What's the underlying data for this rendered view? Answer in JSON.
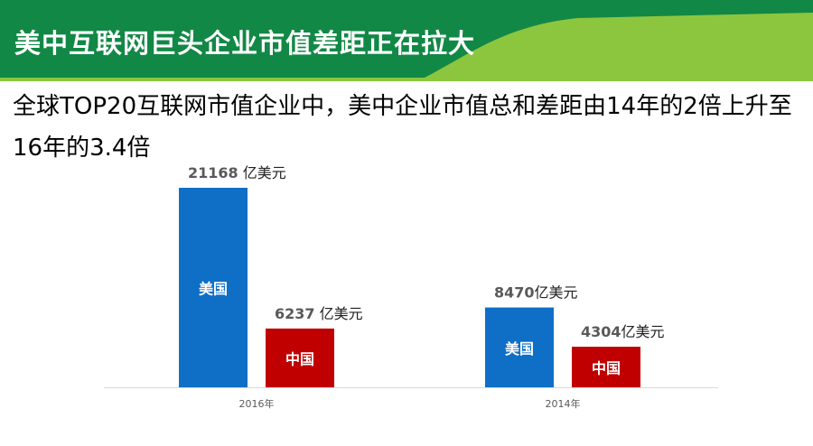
{
  "header": {
    "title": "美中互联网巨头企业市值差距正在拉大",
    "colors": {
      "dark_green": "#128846",
      "light_green": "#8cc63f"
    }
  },
  "subtitle": "全球TOP20互联网市值企业中，美中企业市值总和差距由14年的2倍上升至16年的3.4倍",
  "chart_data": {
    "type": "bar",
    "title": "",
    "categories": [
      "2016年",
      "2014年"
    ],
    "series": [
      {
        "name": "美国",
        "values": [
          21168,
          8470
        ],
        "color": "#0f6fc6"
      },
      {
        "name": "中国",
        "values": [
          6237,
          4304
        ],
        "color": "#c00000"
      }
    ],
    "data_labels": [
      [
        "21168 亿美元",
        "8470亿美元"
      ],
      [
        "6237 亿美元",
        "4304亿美元"
      ]
    ],
    "unit": "亿美元",
    "ylim": [
      0,
      21168
    ],
    "grid": false,
    "legend": "none"
  }
}
